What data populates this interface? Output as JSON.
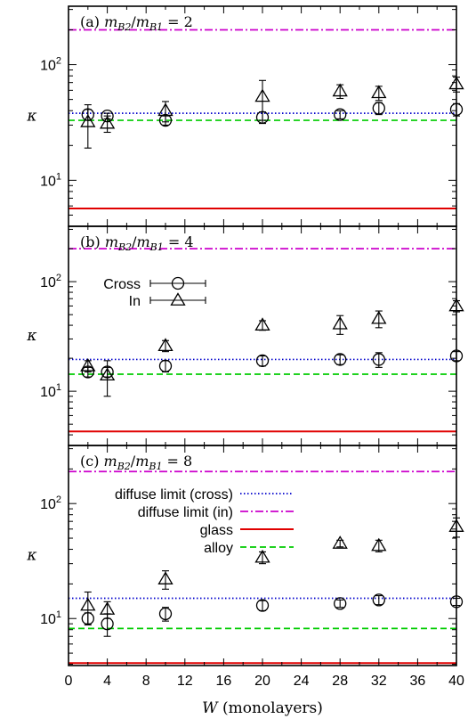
{
  "chart_data": [
    {
      "type": "scatter",
      "title": "(a) m_B2/m_B1 = 2",
      "title_parts": {
        "tag": "(a) ",
        "m": "m",
        "sub1": "B2",
        "slash": "/",
        "m2": "m",
        "sub2": "B1",
        "eq": " = 2"
      },
      "ylabel": "κ",
      "yscale": "log",
      "ylim": [
        4.0,
        320
      ],
      "yticks": [
        {
          "value": 10,
          "label": "10",
          "sup": "1"
        },
        {
          "value": 100,
          "label": "10",
          "sup": "2"
        }
      ],
      "xlim": [
        0,
        40
      ],
      "lines": [
        {
          "name": "diffuse limit (cross)",
          "y": 38,
          "color": "#0000cc",
          "style": "dotted"
        },
        {
          "name": "diffuse limit (in)",
          "y": 200,
          "color": "#cc00cc",
          "style": "dashdot"
        },
        {
          "name": "glass",
          "y": 5.7,
          "color": "#e00000",
          "style": "solid"
        },
        {
          "name": "alloy",
          "y": 33,
          "color": "#00cc00",
          "style": "dashed"
        }
      ],
      "series": [
        {
          "name": "Cross",
          "marker": "circle",
          "x": [
            2,
            4,
            10,
            20,
            28,
            32,
            40
          ],
          "y": [
            37,
            36,
            33,
            35,
            37,
            42,
            41
          ],
          "err": [
            4,
            2,
            3,
            4,
            3,
            5,
            5
          ]
        },
        {
          "name": "In",
          "marker": "triangle",
          "x": [
            2,
            4,
            10,
            20,
            28,
            32,
            40
          ],
          "y": [
            32,
            31,
            40,
            53,
            59,
            57,
            68
          ],
          "err": [
            13,
            5,
            8,
            20,
            8,
            8,
            10
          ]
        }
      ]
    },
    {
      "type": "scatter",
      "title": "(b) m_B2/m_B1 = 4",
      "title_parts": {
        "tag": "(b) ",
        "m": "m",
        "sub1": "B2",
        "slash": "/",
        "m2": "m",
        "sub2": "B1",
        "eq": " = 4"
      },
      "ylabel": "κ",
      "yscale": "log",
      "ylim": [
        3.2,
        320
      ],
      "yticks": [
        {
          "value": 10,
          "label": "10",
          "sup": "1"
        },
        {
          "value": 100,
          "label": "10",
          "sup": "2"
        }
      ],
      "xlim": [
        0,
        40
      ],
      "legend": {
        "placement": "upper-left",
        "entries": [
          {
            "label": "Cross",
            "marker": "circle"
          },
          {
            "label": "In",
            "marker": "triangle"
          }
        ]
      },
      "lines": [
        {
          "name": "diffuse limit (cross)",
          "y": 19.5,
          "color": "#0000cc",
          "style": "dotted"
        },
        {
          "name": "diffuse limit (in)",
          "y": 200,
          "color": "#cc00cc",
          "style": "dashdot"
        },
        {
          "name": "glass",
          "y": 4.3,
          "color": "#e00000",
          "style": "solid"
        },
        {
          "name": "alloy",
          "y": 14.3,
          "color": "#00cc00",
          "style": "dashed"
        }
      ],
      "series": [
        {
          "name": "Cross",
          "marker": "circle",
          "x": [
            2,
            4,
            10,
            20,
            28,
            32,
            40
          ],
          "y": [
            15,
            15,
            17,
            19,
            19.5,
            19.5,
            21
          ],
          "err": [
            1.5,
            1.5,
            2,
            2,
            2,
            3,
            2
          ]
        },
        {
          "name": "In",
          "marker": "triangle",
          "x": [
            2,
            4,
            10,
            20,
            28,
            32,
            40
          ],
          "y": [
            17,
            14,
            26,
            40,
            41,
            46,
            60
          ],
          "err": [
            2,
            5,
            3,
            4,
            8,
            8,
            7
          ]
        }
      ]
    },
    {
      "type": "scatter",
      "title": "(c) m_B2/m_B1 = 8",
      "title_parts": {
        "tag": "(c) ",
        "m": "m",
        "sub1": "B2",
        "slash": "/",
        "m2": "m",
        "sub2": "B1",
        "eq": " = 8"
      },
      "ylabel": "κ",
      "yscale": "log",
      "ylim": [
        3.9,
        320
      ],
      "yticks": [
        {
          "value": 10,
          "label": "10",
          "sup": "1"
        },
        {
          "value": 100,
          "label": "10",
          "sup": "2"
        }
      ],
      "xlim": [
        0,
        40
      ],
      "xticks": [
        0,
        4,
        8,
        12,
        16,
        20,
        24,
        28,
        32,
        36,
        40
      ],
      "xlabel": {
        "var": "W",
        "rest": " (monolayers)"
      },
      "legend": {
        "placement": "upper-left",
        "entries": [
          {
            "label": "diffuse limit (cross)",
            "color": "#0000cc",
            "style": "dotted"
          },
          {
            "label": "diffuse limit (in)",
            "color": "#cc00cc",
            "style": "dashdot"
          },
          {
            "label": "glass",
            "color": "#e00000",
            "style": "solid"
          },
          {
            "label": "alloy",
            "color": "#00cc00",
            "style": "dashed"
          }
        ]
      },
      "lines": [
        {
          "name": "diffuse limit (cross)",
          "y": 15,
          "color": "#0000cc",
          "style": "dotted"
        },
        {
          "name": "diffuse limit (in)",
          "y": 190,
          "color": "#cc00cc",
          "style": "dashdot"
        },
        {
          "name": "glass",
          "y": 4.1,
          "color": "#e00000",
          "style": "solid"
        },
        {
          "name": "alloy",
          "y": 8.2,
          "color": "#00cc00",
          "style": "dashed"
        }
      ],
      "series": [
        {
          "name": "Cross",
          "marker": "circle",
          "x": [
            2,
            4,
            10,
            20,
            28,
            32,
            40
          ],
          "y": [
            10,
            9,
            11,
            13,
            13.5,
            14.5,
            14
          ],
          "err": [
            1.2,
            2,
            1.5,
            1.3,
            1,
            1.3,
            1
          ]
        },
        {
          "name": "In",
          "marker": "triangle",
          "x": [
            2,
            4,
            10,
            20,
            28,
            32,
            40
          ],
          "y": [
            13,
            12,
            22,
            34,
            45,
            43,
            63
          ],
          "err": [
            4,
            2,
            4,
            4,
            3,
            5,
            12
          ]
        }
      ]
    }
  ]
}
